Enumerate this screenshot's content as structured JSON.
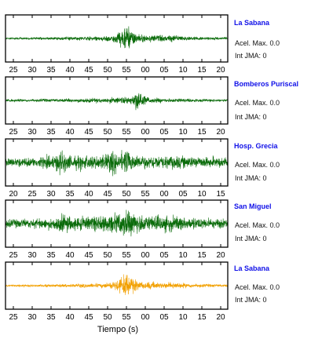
{
  "colors": {
    "trace_default": "#0a6b0a",
    "trace_highlight": "#f2a000",
    "station_name": "#1010e8"
  },
  "accel_label": "Acel. Max.",
  "intensity_label": "Int JMA:",
  "x_title": "Tiempo (s)",
  "chart_data": [
    {
      "type": "line",
      "station": "La Sabana",
      "accel_max": "0.0",
      "int_jma": "0",
      "color": "#0a6b0a",
      "tick_labels": [
        "25",
        "30",
        "35",
        "40",
        "45",
        "50",
        "55",
        "00",
        "05",
        "10",
        "15",
        "20"
      ],
      "x": [
        25,
        26,
        27,
        28,
        29,
        30,
        31,
        32,
        33,
        34,
        35,
        36,
        37,
        38,
        39,
        40,
        41,
        42,
        43,
        44,
        45,
        46,
        47,
        48,
        49,
        50,
        51,
        52,
        53,
        54,
        55,
        56,
        57,
        58,
        59,
        60,
        61,
        62,
        63,
        64,
        65,
        66,
        67,
        68,
        69,
        70,
        71,
        72,
        73,
        74,
        75,
        76,
        77,
        78,
        79,
        80,
        81,
        82
      ],
      "envelope": [
        0.07,
        0.07,
        0.08,
        0.07,
        0.08,
        0.08,
        0.09,
        0.08,
        0.09,
        0.1,
        0.09,
        0.1,
        0.11,
        0.1,
        0.12,
        0.11,
        0.12,
        0.14,
        0.13,
        0.15,
        0.14,
        0.16,
        0.15,
        0.17,
        0.16,
        0.18,
        0.22,
        0.28,
        0.36,
        0.5,
        0.7,
        1.0,
        0.75,
        0.5,
        0.35,
        0.28,
        0.25,
        0.3,
        0.28,
        0.24,
        0.22,
        0.2,
        0.26,
        0.3,
        0.24,
        0.2,
        0.18,
        0.16,
        0.15,
        0.14,
        0.13,
        0.12,
        0.12,
        0.11,
        0.11,
        0.1,
        0.1,
        0.1
      ]
    },
    {
      "type": "line",
      "station": "Bomberos Puriscal",
      "accel_max": "0.0",
      "int_jma": "0",
      "color": "#0a6b0a",
      "tick_labels": [
        "25",
        "30",
        "35",
        "40",
        "45",
        "50",
        "55",
        "00",
        "05",
        "10",
        "15",
        "20"
      ],
      "x": [
        25,
        26,
        27,
        28,
        29,
        30,
        31,
        32,
        33,
        34,
        35,
        36,
        37,
        38,
        39,
        40,
        41,
        42,
        43,
        44,
        45,
        46,
        47,
        48,
        49,
        50,
        51,
        52,
        53,
        54,
        55,
        56,
        57,
        58,
        59,
        60,
        61,
        62,
        63,
        64,
        65,
        66,
        67,
        68,
        69,
        70,
        71,
        72,
        73,
        74,
        75,
        76,
        77,
        78,
        79,
        80,
        81,
        82
      ],
      "envelope": [
        0.09,
        0.09,
        0.1,
        0.09,
        0.1,
        0.1,
        0.1,
        0.11,
        0.1,
        0.11,
        0.12,
        0.11,
        0.12,
        0.11,
        0.13,
        0.12,
        0.14,
        0.15,
        0.16,
        0.15,
        0.16,
        0.17,
        0.16,
        0.18,
        0.17,
        0.18,
        0.2,
        0.2,
        0.22,
        0.22,
        0.24,
        0.28,
        0.3,
        0.5,
        1.0,
        0.55,
        0.3,
        0.22,
        0.2,
        0.18,
        0.17,
        0.16,
        0.16,
        0.15,
        0.15,
        0.14,
        0.14,
        0.13,
        0.13,
        0.12,
        0.12,
        0.12,
        0.11,
        0.11,
        0.11,
        0.1,
        0.1,
        0.1
      ]
    },
    {
      "type": "line",
      "station": "Hosp. Grecia",
      "accel_max": "0.0",
      "int_jma": "0",
      "color": "#0a6b0a",
      "tick_labels": [
        "20",
        "25",
        "30",
        "35",
        "40",
        "45",
        "50",
        "55",
        "00",
        "05",
        "10",
        "15"
      ],
      "x": [
        20,
        21,
        22,
        23,
        24,
        25,
        26,
        27,
        28,
        29,
        30,
        31,
        32,
        33,
        34,
        35,
        36,
        37,
        38,
        39,
        40,
        41,
        42,
        43,
        44,
        45,
        46,
        47,
        48,
        49,
        50,
        51,
        52,
        53,
        54,
        55,
        56,
        57,
        58,
        59,
        60,
        61,
        62,
        63,
        64,
        65,
        66,
        67,
        68,
        69,
        70,
        71,
        72,
        73,
        74,
        75
      ],
      "envelope": [
        0.3,
        0.32,
        0.3,
        0.35,
        0.33,
        0.36,
        0.35,
        0.38,
        0.42,
        0.4,
        0.45,
        0.5,
        0.48,
        0.75,
        0.95,
        0.6,
        0.52,
        0.48,
        0.5,
        0.55,
        0.52,
        0.5,
        0.48,
        0.52,
        0.55,
        0.6,
        0.9,
        0.75,
        0.65,
        0.8,
        1.0,
        0.7,
        0.6,
        0.55,
        0.5,
        0.48,
        0.5,
        0.55,
        0.52,
        0.48,
        0.45,
        0.48,
        0.5,
        0.46,
        0.44,
        0.42,
        0.45,
        0.48,
        0.44,
        0.42,
        0.4,
        0.42,
        0.4,
        0.38,
        0.36,
        0.35
      ]
    },
    {
      "type": "line",
      "station": "San Miguel",
      "accel_max": "0.0",
      "int_jma": "0",
      "color": "#0a6b0a",
      "tick_labels": [
        "25",
        "30",
        "35",
        "40",
        "45",
        "50",
        "55",
        "00",
        "05",
        "10",
        "15",
        "20"
      ],
      "x": [
        25,
        26,
        27,
        28,
        29,
        30,
        31,
        32,
        33,
        34,
        35,
        36,
        37,
        38,
        39,
        40,
        41,
        42,
        43,
        44,
        45,
        46,
        47,
        48,
        49,
        50,
        51,
        52,
        53,
        54,
        55,
        56,
        57,
        58,
        59,
        60,
        61,
        62,
        63,
        64,
        65,
        66,
        67,
        68,
        69,
        70,
        71,
        72,
        73,
        74,
        75,
        76,
        77,
        78,
        79,
        80,
        81,
        82
      ],
      "envelope": [
        0.3,
        0.32,
        0.3,
        0.33,
        0.32,
        0.35,
        0.34,
        0.36,
        0.38,
        0.37,
        0.4,
        0.42,
        0.45,
        0.5,
        0.62,
        0.7,
        0.58,
        0.52,
        0.5,
        0.55,
        0.52,
        0.5,
        0.55,
        0.58,
        0.6,
        0.62,
        0.65,
        0.68,
        0.7,
        0.8,
        0.9,
        1.0,
        0.92,
        0.85,
        0.8,
        0.72,
        0.65,
        0.6,
        0.58,
        0.56,
        0.55,
        0.58,
        0.6,
        0.55,
        0.52,
        0.5,
        0.48,
        0.46,
        0.45,
        0.44,
        0.42,
        0.42,
        0.4,
        0.38,
        0.37,
        0.36,
        0.35,
        0.34
      ]
    },
    {
      "type": "line",
      "station": "La Sabana",
      "accel_max": "0.0",
      "int_jma": "0",
      "color": "#f2a000",
      "tick_labels": [
        "25",
        "30",
        "35",
        "40",
        "45",
        "50",
        "55",
        "00",
        "05",
        "10",
        "15",
        "20"
      ],
      "x": [
        25,
        26,
        27,
        28,
        29,
        30,
        31,
        32,
        33,
        34,
        35,
        36,
        37,
        38,
        39,
        40,
        41,
        42,
        43,
        44,
        45,
        46,
        47,
        48,
        49,
        50,
        51,
        52,
        53,
        54,
        55,
        56,
        57,
        58,
        59,
        60,
        61,
        62,
        63,
        64,
        65,
        66,
        67,
        68,
        69,
        70,
        71,
        72,
        73,
        74,
        75,
        76,
        77,
        78,
        79,
        80,
        81,
        82
      ],
      "envelope": [
        0.07,
        0.07,
        0.08,
        0.07,
        0.08,
        0.08,
        0.09,
        0.08,
        0.09,
        0.1,
        0.09,
        0.1,
        0.11,
        0.1,
        0.12,
        0.11,
        0.12,
        0.14,
        0.13,
        0.15,
        0.14,
        0.16,
        0.15,
        0.17,
        0.16,
        0.18,
        0.22,
        0.28,
        0.36,
        0.5,
        0.7,
        1.0,
        0.75,
        0.5,
        0.35,
        0.28,
        0.25,
        0.3,
        0.28,
        0.24,
        0.22,
        0.2,
        0.26,
        0.3,
        0.24,
        0.2,
        0.18,
        0.16,
        0.15,
        0.14,
        0.13,
        0.12,
        0.12,
        0.11,
        0.11,
        0.1,
        0.1,
        0.1
      ]
    }
  ]
}
